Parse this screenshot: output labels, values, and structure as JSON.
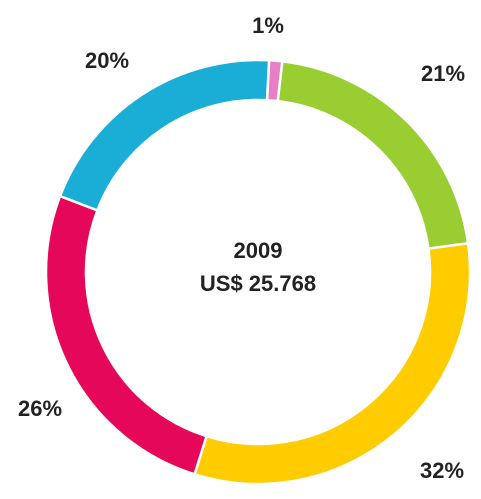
{
  "chart_data": {
    "type": "donut",
    "title": "2009",
    "subtitle": "US$ 25.768",
    "values": [
      1,
      21,
      32,
      26,
      20
    ],
    "value_labels": [
      "1%",
      "21%",
      "32%",
      "26%",
      "20%"
    ],
    "colors": [
      "#e87fc6",
      "#9acd32",
      "#ffcc00",
      "#e5085a",
      "#1aaed6"
    ]
  }
}
